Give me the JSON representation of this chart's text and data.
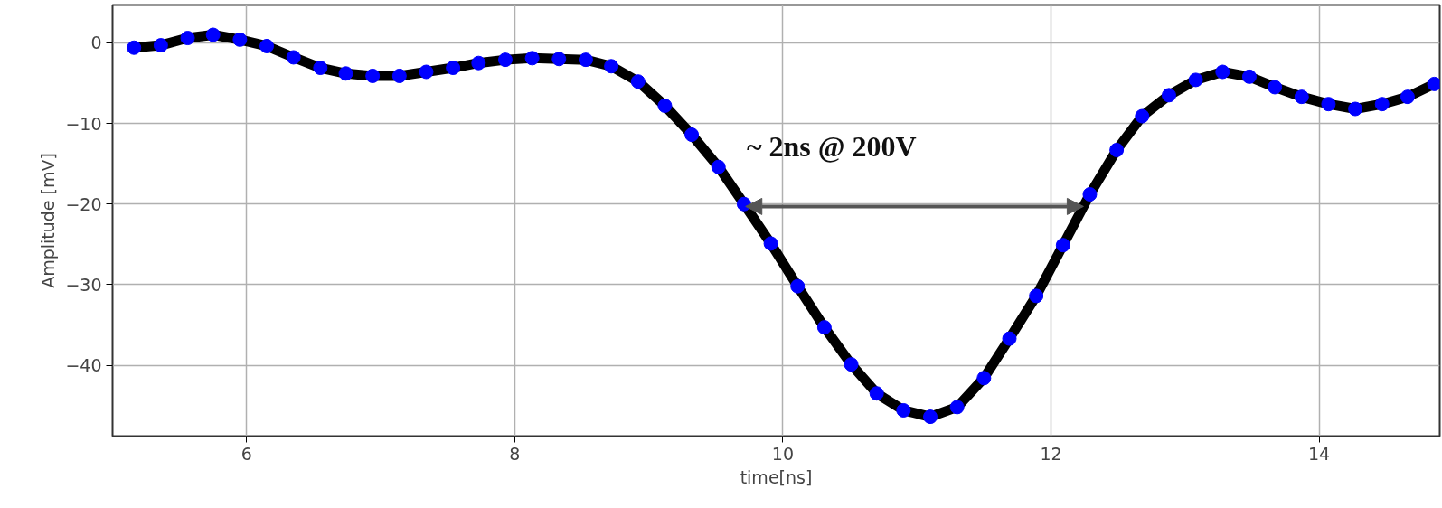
{
  "chart_data": {
    "type": "line",
    "xlabel": "time[ns]",
    "ylabel": "Amplitude [mV]",
    "x": [
      5.16,
      5.36,
      5.56,
      5.75,
      5.95,
      6.15,
      6.35,
      6.55,
      6.74,
      6.94,
      7.14,
      7.34,
      7.54,
      7.73,
      7.93,
      8.13,
      8.33,
      8.53,
      8.72,
      8.92,
      9.12,
      9.32,
      9.52,
      9.71,
      9.91,
      10.11,
      10.31,
      10.51,
      10.7,
      10.9,
      11.1,
      11.3,
      11.5,
      11.69,
      11.89,
      12.09,
      12.29,
      12.49,
      12.68,
      12.88,
      13.08,
      13.28,
      13.48,
      13.67,
      13.87,
      14.07,
      14.27,
      14.47,
      14.66,
      14.86
    ],
    "series": [
      {
        "color": "#000000",
        "marker": "none",
        "values": [
          -0.6,
          -0.3,
          0.6,
          1.0,
          0.4,
          -0.4,
          -1.8,
          -3.1,
          -3.8,
          -4.1,
          -4.1,
          -3.6,
          -3.1,
          -2.5,
          -2.1,
          -1.9,
          -2.0,
          -2.1,
          -2.9,
          -4.8,
          -7.8,
          -11.4,
          -15.4,
          -20,
          -24.9,
          -30.2,
          -35.3,
          -39.9,
          -43.5,
          -45.6,
          -46.4,
          -45.2,
          -41.6,
          -36.7,
          -31.4,
          -25.1,
          -18.8,
          -13.3,
          -9.1,
          -6.5,
          -4.6,
          -3.6,
          -4.2,
          -5.5,
          -6.7,
          -7.6,
          -8.2,
          -7.6,
          -6.7,
          -5.1
        ]
      },
      {
        "type": "scatter",
        "color": "#0000ff",
        "marker": "circle",
        "values": [
          -0.6,
          -0.3,
          0.6,
          1.0,
          0.4,
          -0.4,
          -1.8,
          -3.1,
          -3.8,
          -4.1,
          -4.1,
          -3.6,
          -3.1,
          -2.5,
          -2.1,
          -1.9,
          -2.0,
          -2.1,
          -2.9,
          -4.8,
          -7.8,
          -11.4,
          -15.4,
          -20,
          -24.9,
          -30.2,
          -35.3,
          -39.9,
          -43.5,
          -45.6,
          -46.4,
          -45.2,
          -41.6,
          -36.7,
          -31.4,
          -25.1,
          -18.8,
          -13.3,
          -9.1,
          -6.5,
          -4.6,
          -3.6,
          -4.2,
          -5.5,
          -6.7,
          -7.6,
          -8.2,
          -7.6,
          -6.7,
          -5.1
        ]
      }
    ],
    "annotations": [
      {
        "text": "~ 2ns @ 200V",
        "x": 9.73,
        "y": -20.3
      }
    ],
    "xlim": [
      5,
      14.9
    ],
    "ylim": [
      -48.8,
      4.7
    ],
    "xticks": [
      6,
      8,
      10,
      12,
      14
    ],
    "yticks": [
      0,
      {
        "value": -10,
        "label": "−10"
      },
      {
        "value": -20,
        "label": "−20"
      },
      {
        "value": -30,
        "label": "−30"
      },
      {
        "value": -40,
        "label": "−40"
      }
    ],
    "grid": true
  }
}
